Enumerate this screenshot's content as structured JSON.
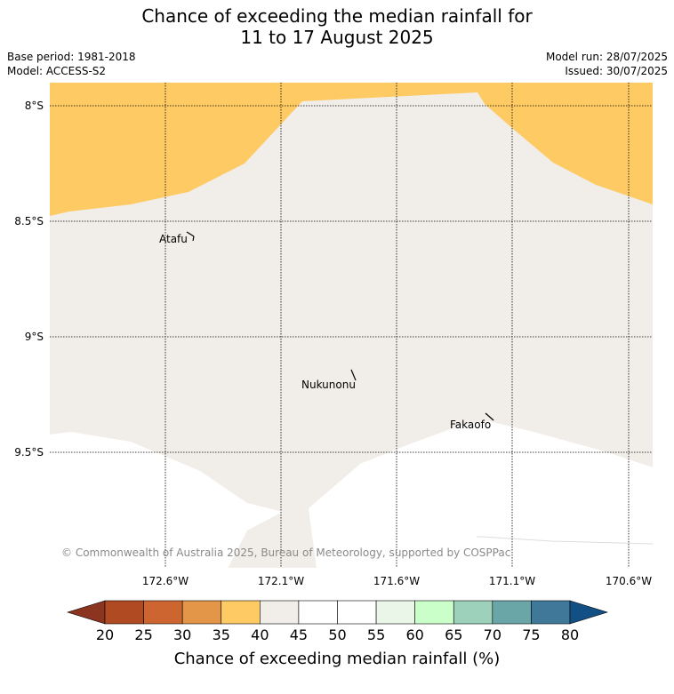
{
  "title": {
    "line1": "Chance of exceeding the median rainfall for",
    "line2": "11 to 17 August 2025"
  },
  "meta": {
    "base_period": "Base period: 1981-2018",
    "model": "Model: ACCESS-S2",
    "model_run": "Model run: 28/07/2025",
    "issued": "Issued: 30/07/2025"
  },
  "map": {
    "lat_labels": [
      "8°S",
      "8.5°S",
      "9°S",
      "9.5°S"
    ],
    "lon_labels": [
      "172.6°W",
      "172.1°W",
      "171.6°W",
      "171.1°W",
      "170.6°W"
    ],
    "places": [
      "Atafu",
      "Nukunonu",
      "Fakaofo"
    ],
    "copyright": "© Commonwealth of Australia 2025, Bureau of Meteorology, supported by COSPPac",
    "colors": {
      "band_35_40": "#fdca63",
      "band_40_45": "#f1ede8",
      "land_line": "#000000"
    }
  },
  "colorbar": {
    "ticks": [
      "20",
      "25",
      "30",
      "35",
      "40",
      "45",
      "50",
      "55",
      "60",
      "65",
      "70",
      "75",
      "80"
    ],
    "colors": [
      "#8b3420",
      "#b04a22",
      "#cd6530",
      "#e39548",
      "#fdca63",
      "#f1ede8",
      "#ffffff",
      "#ffffff",
      "#eaf6e8",
      "#caffca",
      "#9dd1bb",
      "#6aa5a8",
      "#3f7898",
      "#124f85"
    ],
    "label": "Chance of exceeding median rainfall (%)"
  }
}
